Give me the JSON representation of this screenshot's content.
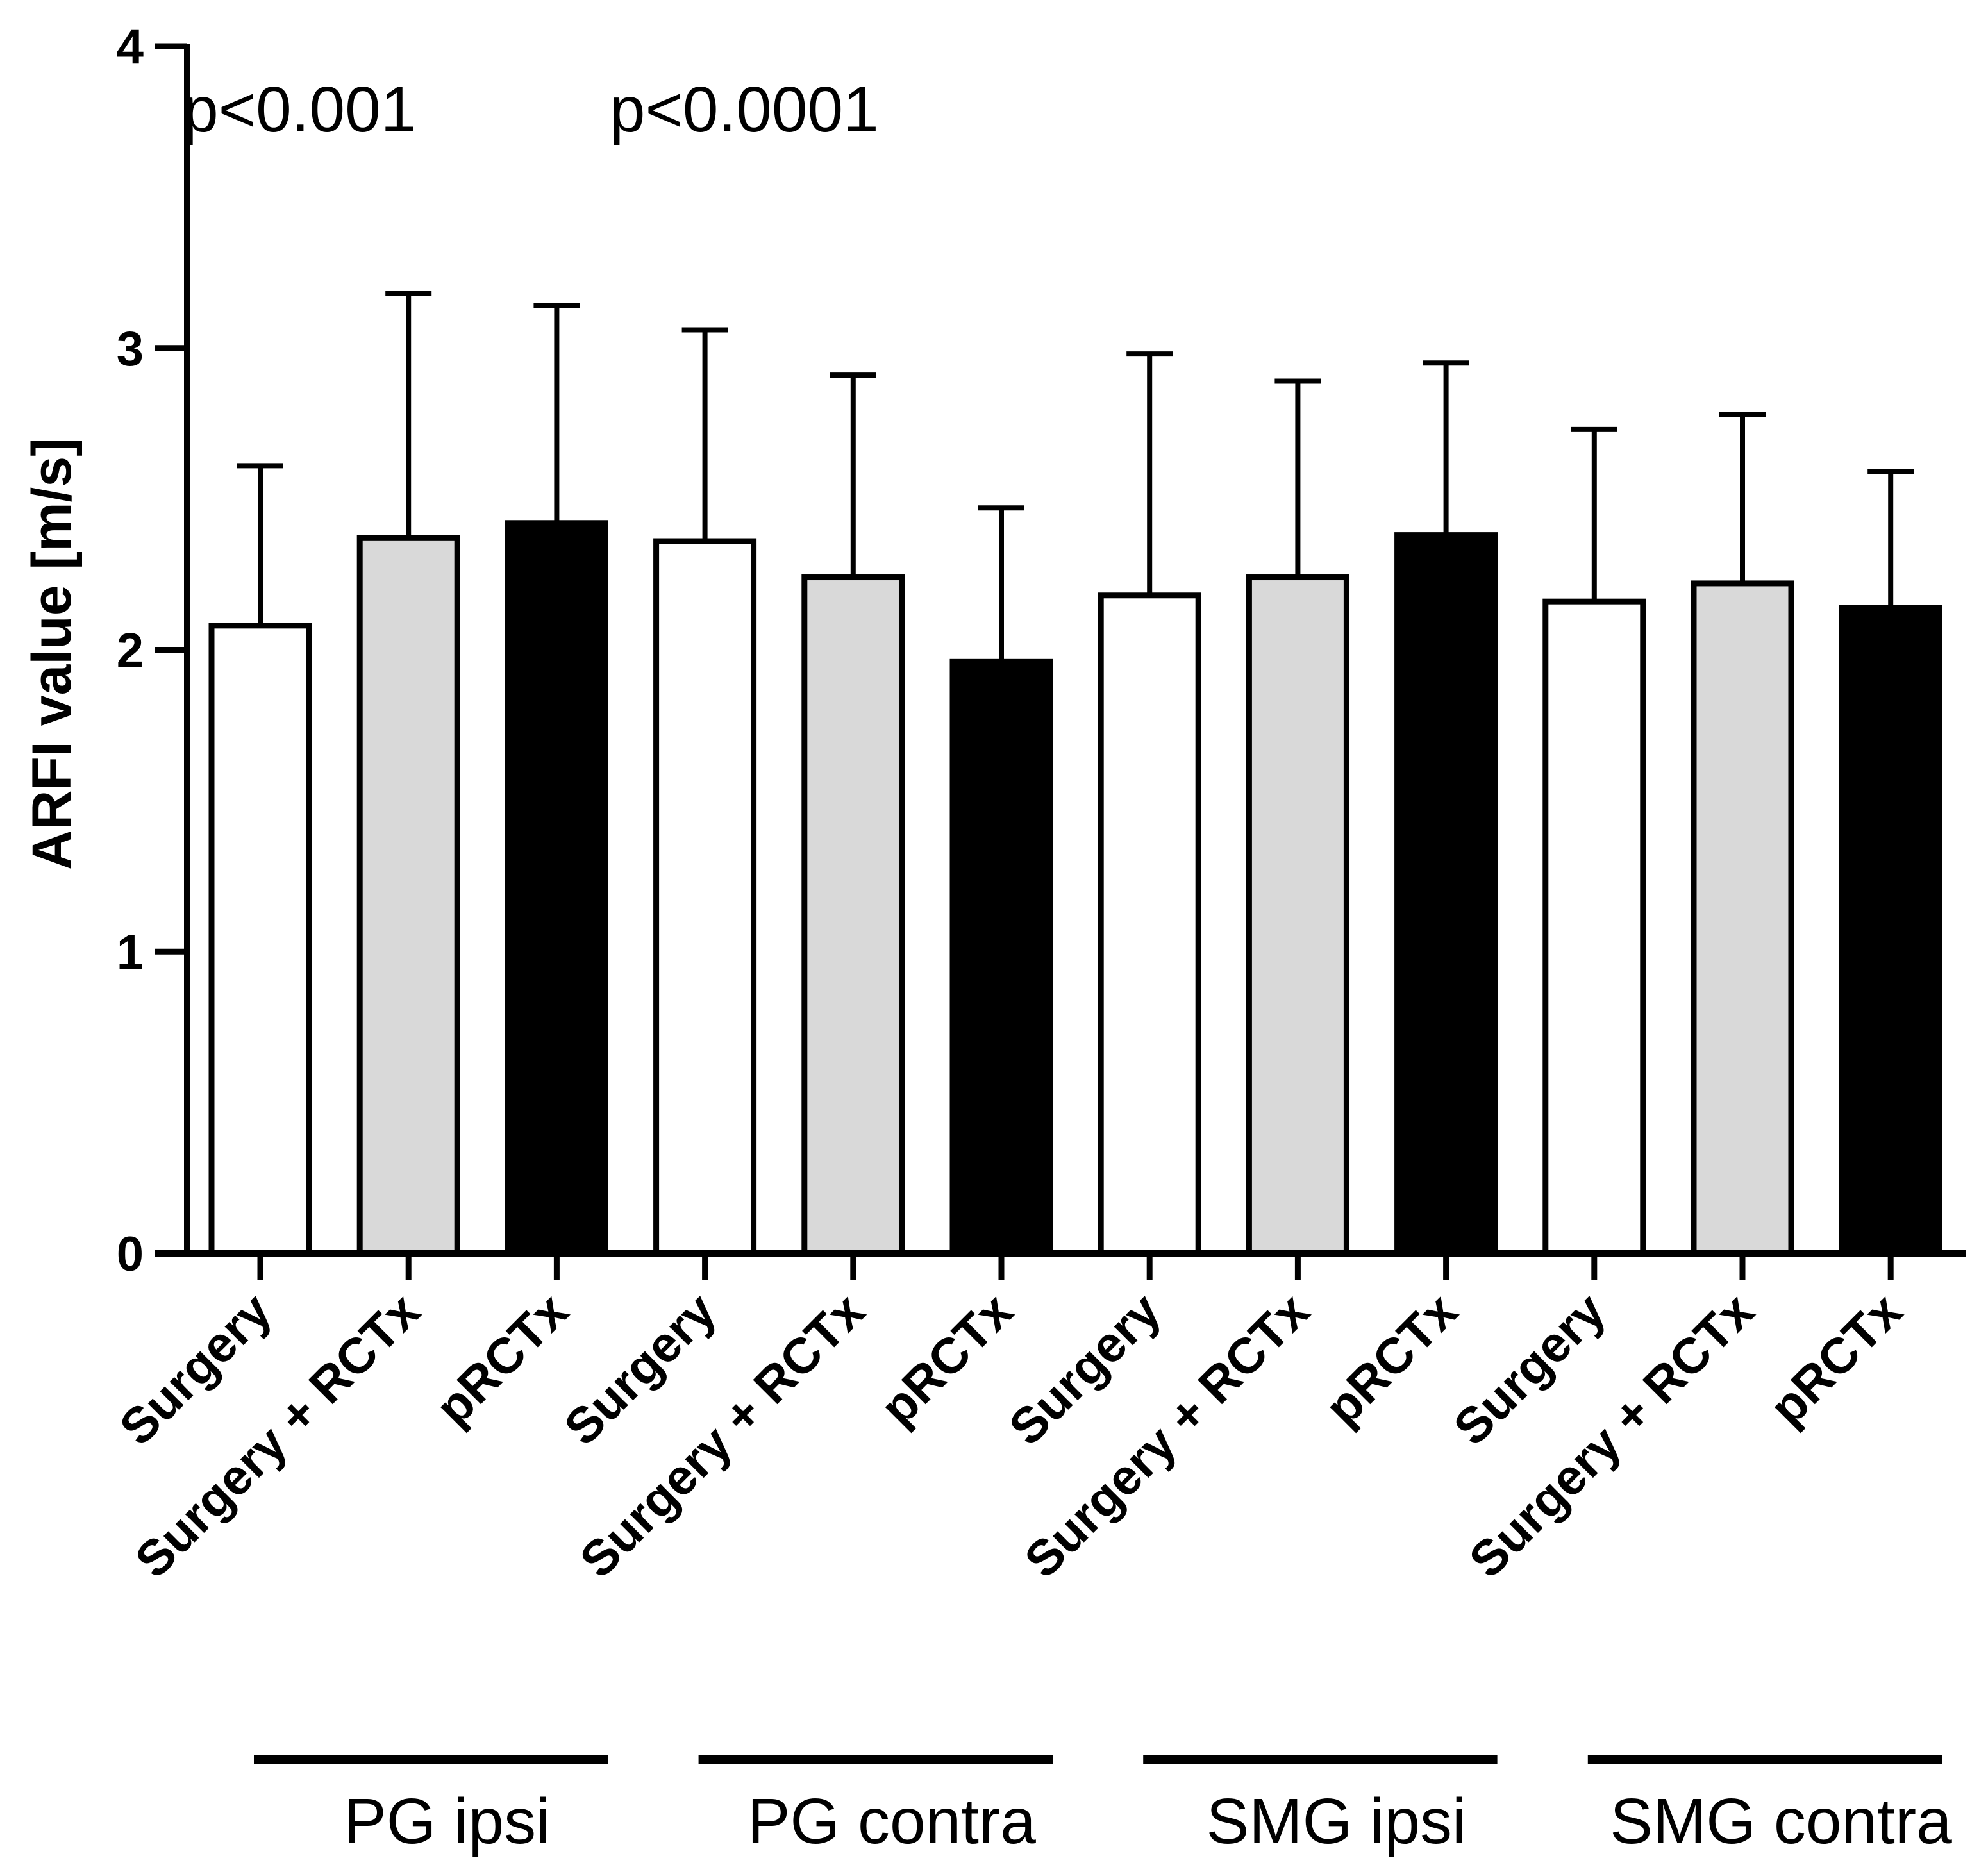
{
  "chart_data": {
    "type": "bar",
    "title": "",
    "xlabel": "",
    "ylabel": "ARFI value [m/s]",
    "ylim": [
      0,
      4
    ],
    "yticks": [
      "0",
      "1",
      "2",
      "3",
      "4"
    ],
    "grid": false,
    "categories": [
      "Surgery",
      "Surgery + RCTx",
      "pRCTx",
      "Surgery",
      "Surgery + RCTx",
      "pRCTx",
      "Surgery",
      "Surgery + RCTx",
      "pRCTx",
      "Surgery",
      "Surgery + RCTx",
      "pRCTx"
    ],
    "values": [
      2.08,
      2.37,
      2.42,
      2.36,
      2.24,
      1.96,
      2.18,
      2.24,
      2.38,
      2.16,
      2.22,
      2.14
    ],
    "error_upper": [
      2.61,
      3.18,
      3.14,
      3.06,
      2.91,
      2.47,
      2.98,
      2.89,
      2.95,
      2.73,
      2.78,
      2.59
    ],
    "fills": [
      "#ffffff",
      "#d9d9d9",
      "#000000",
      "#ffffff",
      "#d9d9d9",
      "#000000",
      "#ffffff",
      "#d9d9d9",
      "#000000",
      "#ffffff",
      "#d9d9d9",
      "#000000"
    ],
    "groups": [
      {
        "label": "PG ipsi",
        "bars": [
          0,
          1,
          2
        ]
      },
      {
        "label": "PG contra",
        "bars": [
          3,
          4,
          5
        ]
      },
      {
        "label": "SMG ipsi",
        "bars": [
          6,
          7,
          8
        ]
      },
      {
        "label": "SMG contra",
        "bars": [
          9,
          10,
          11
        ]
      }
    ],
    "annotations": [
      {
        "text": "p<0.001",
        "group": 0
      },
      {
        "text": "p<0.0001",
        "group": 1
      }
    ]
  }
}
